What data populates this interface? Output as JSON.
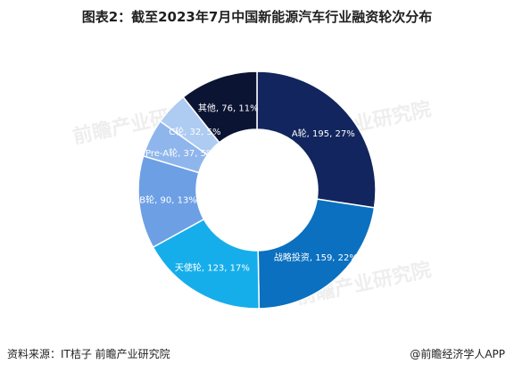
{
  "title": "图表2：截至2023年7月中国新能源汽车行业融资轮次分布",
  "source": "资料来源：IT桔子 前瞻产业研究院",
  "brand": "@前瞻经济学人APP",
  "watermark": "前瞻产业研究院",
  "chart_data": {
    "type": "pie",
    "donut": true,
    "slices": [
      {
        "label": "A轮, 195, 27%",
        "name": "A轮",
        "value": 195,
        "percent": 27,
        "color": "#12255e"
      },
      {
        "label": "战略投资, 159, 22%",
        "name": "战略投资",
        "value": 159,
        "percent": 22,
        "color": "#0b70bf"
      },
      {
        "label": "天使轮, 123, 17%",
        "name": "天使轮",
        "value": 123,
        "percent": 17,
        "color": "#16aeea"
      },
      {
        "label": "B轮, 90, 13%",
        "name": "B轮",
        "value": 90,
        "percent": 13,
        "color": "#6d9fe4"
      },
      {
        "label": "Pre-A轮, 37, 5%",
        "name": "Pre-A轮",
        "value": 37,
        "percent": 5,
        "color": "#8fb6ec"
      },
      {
        "label": "C轮, 32, 5%",
        "name": "C轮",
        "value": 32,
        "percent": 5,
        "color": "#aecbf2"
      },
      {
        "label": "其他, 76, 11%",
        "name": "其他",
        "value": 76,
        "percent": 11,
        "color": "#0b1433"
      }
    ]
  }
}
